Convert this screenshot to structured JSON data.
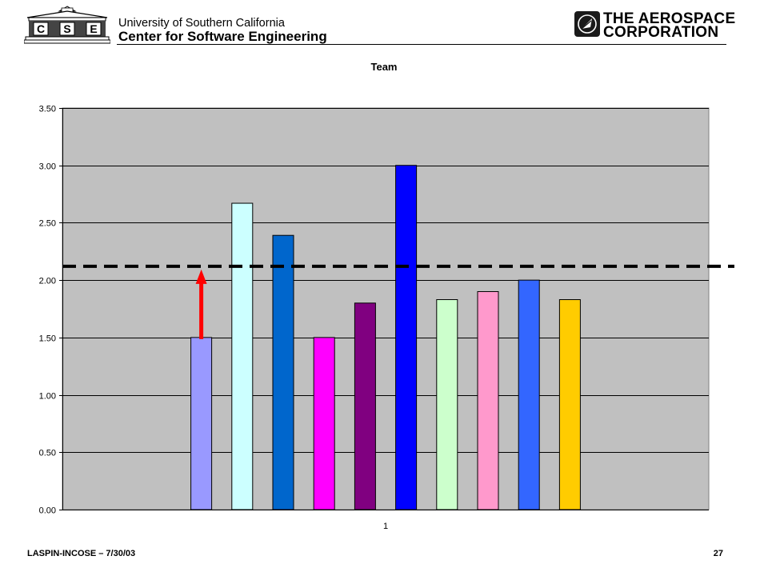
{
  "header": {
    "university": "University of Southern California",
    "center": "Center for Software Engineering",
    "cse_letters": [
      "C",
      "S",
      "E"
    ],
    "aerospace_line1": "THE AEROSPACE",
    "aerospace_line2": "CORPORATION"
  },
  "footer": {
    "left": "LASPIN-INCOSE  – 7/30/03",
    "page_number": "27"
  },
  "chart_data": {
    "type": "bar",
    "title": "Team",
    "xlabel": "",
    "ylabel": "",
    "categories": [
      "1"
    ],
    "ylim": [
      0,
      3.5
    ],
    "ytick_labels": [
      "0.00",
      "0.50",
      "1.00",
      "1.50",
      "2.00",
      "2.50",
      "3.00",
      "3.50"
    ],
    "grid": true,
    "legend": "none",
    "plot_background": "#c0c0c0",
    "series": [
      {
        "values": [
          1.5
        ],
        "color": "#9999ff"
      },
      {
        "values": [
          2.67
        ],
        "color": "#ccffff"
      },
      {
        "values": [
          2.39
        ],
        "color": "#0066cc"
      },
      {
        "values": [
          1.5
        ],
        "color": "#ff00ff"
      },
      {
        "values": [
          1.8
        ],
        "color": "#800080"
      },
      {
        "values": [
          3.0
        ],
        "color": "#0000ff"
      },
      {
        "values": [
          1.83
        ],
        "color": "#ccffcc"
      },
      {
        "values": [
          1.9
        ],
        "color": "#ff99cc"
      },
      {
        "values": [
          2.0
        ],
        "color": "#3366ff"
      },
      {
        "values": [
          1.83
        ],
        "color": "#ffcc00"
      }
    ],
    "reference_line": {
      "value": 2.12,
      "style": "dashed",
      "color": "#000000"
    },
    "annotation_arrow": {
      "from": 1.5,
      "to": 2.12,
      "series_index": 0,
      "color": "#ff0000"
    }
  }
}
